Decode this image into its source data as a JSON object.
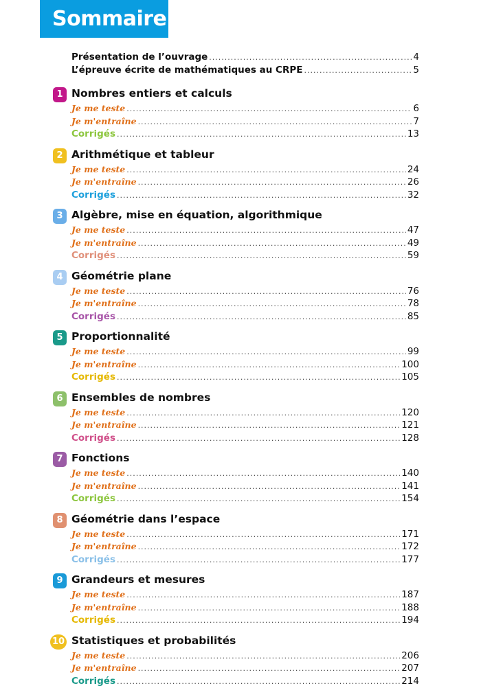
{
  "header": {
    "title": "Sommaire",
    "color": "#0a9de0"
  },
  "intro": [
    {
      "label": "Présentation de l’ouvrage",
      "page": "4"
    },
    {
      "label": "L’épreuve écrite de mathématiques au CRPE",
      "page": "5"
    }
  ],
  "labels": {
    "teste": "Je me teste",
    "entraine": "Je m'entraîne",
    "corriges": "Corrigés"
  },
  "chapters": [
    {
      "num": "1",
      "title": "Nombres entiers et calculs",
      "teste": "6",
      "entraine": "7",
      "corriges": "13",
      "badge_color": "#c2188a",
      "corriges_color": "#8dc63f"
    },
    {
      "num": "2",
      "title": "Arithmétique et tableur",
      "teste": "24",
      "entraine": "26",
      "corriges": "32",
      "badge_color": "#f0c020",
      "corriges_color": "#1ea0dc"
    },
    {
      "num": "3",
      "title": "Algèbre, mise en équation, algorithmique",
      "teste": "47",
      "entraine": "49",
      "corriges": "59",
      "badge_color": "#6aaee8",
      "corriges_color": "#e0907a"
    },
    {
      "num": "4",
      "title": "Géométrie plane",
      "teste": "76",
      "entraine": "78",
      "corriges": "85",
      "badge_color": "#a9cdf2",
      "corriges_color": "#a855a8"
    },
    {
      "num": "5",
      "title": "Proportionnalité",
      "teste": "99",
      "entraine": "100",
      "corriges": "105",
      "badge_color": "#1a9a8a",
      "corriges_color": "#e5b800"
    },
    {
      "num": "6",
      "title": "Ensembles de nombres",
      "teste": "120",
      "entraine": "121",
      "corriges": "128",
      "badge_color": "#8dc06a",
      "corriges_color": "#d0508a"
    },
    {
      "num": "7",
      "title": "Fonctions",
      "teste": "140",
      "entraine": "141",
      "corriges": "154",
      "badge_color": "#9b5ba5",
      "corriges_color": "#8dc63f"
    },
    {
      "num": "8",
      "title": "Géométrie dans l’espace",
      "teste": "171",
      "entraine": "172",
      "corriges": "177",
      "badge_color": "#e09070",
      "corriges_color": "#8ac0e8"
    },
    {
      "num": "9",
      "title": "Grandeurs et mesures",
      "teste": "187",
      "entraine": "188",
      "corriges": "194",
      "badge_color": "#1a9ad8",
      "corriges_color": "#e5b800"
    },
    {
      "num": "10",
      "title": "Statistiques et probabilités",
      "teste": "206",
      "entraine": "207",
      "corriges": "214",
      "badge_color": "#f0c020",
      "corriges_color": "#1a9a8a"
    }
  ]
}
